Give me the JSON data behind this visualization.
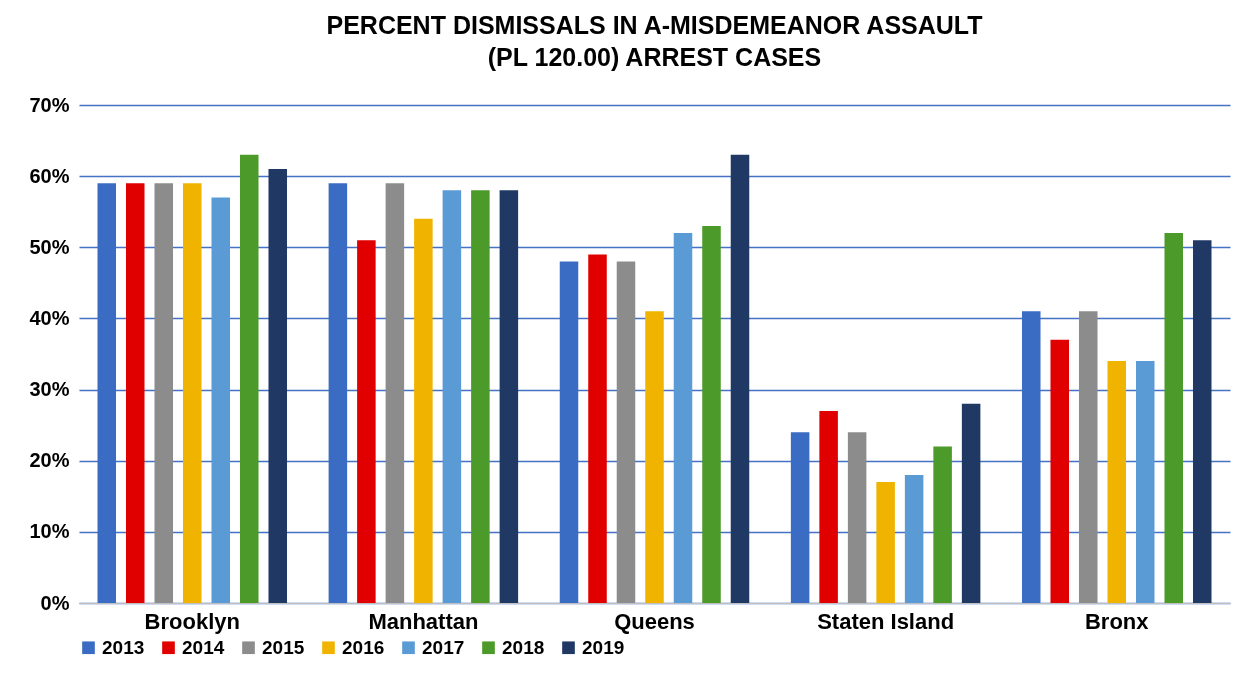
{
  "chart_data": {
    "type": "bar",
    "title": "PERCENT DISMISSALS IN A-MISDEMEANOR ASSAULT\n(PL 120.00)  ARREST CASES",
    "categories": [
      "Brooklyn",
      "Manhattan",
      "Queens",
      "Staten Island",
      "Bronx"
    ],
    "series": [
      {
        "name": "2013",
        "color": "#3a6cc4",
        "values": [
          59,
          59,
          48,
          24,
          41
        ]
      },
      {
        "name": "2014",
        "color": "#e00000",
        "values": [
          59,
          51,
          49,
          27,
          37
        ]
      },
      {
        "name": "2015",
        "color": "#8c8c8c",
        "values": [
          59,
          59,
          48,
          24,
          41
        ]
      },
      {
        "name": "2016",
        "color": "#f0b400",
        "values": [
          59,
          54,
          41,
          17,
          34
        ]
      },
      {
        "name": "2017",
        "color": "#5b9bd5",
        "values": [
          57,
          58,
          52,
          18,
          34
        ]
      },
      {
        "name": "2018",
        "color": "#4c9a2a",
        "values": [
          63,
          58,
          53,
          22,
          52
        ]
      },
      {
        "name": "2019",
        "color": "#1f3864",
        "values": [
          61,
          58,
          63,
          28,
          51
        ]
      }
    ],
    "ylim": [
      0,
      70
    ],
    "yticks": [
      {
        "value": 0,
        "label": "0%"
      },
      {
        "value": 10,
        "label": "10%"
      },
      {
        "value": 20,
        "label": "20%"
      },
      {
        "value": 30,
        "label": "30%"
      },
      {
        "value": 40,
        "label": "40%"
      },
      {
        "value": 50,
        "label": "50%"
      },
      {
        "value": 60,
        "label": "60%"
      },
      {
        "value": 70,
        "label": "70%"
      }
    ],
    "grid": "y",
    "legend": "bottom"
  }
}
